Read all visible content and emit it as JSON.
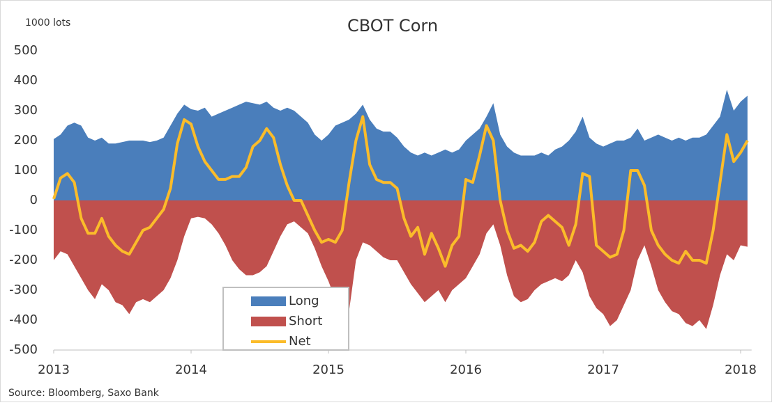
{
  "chart_data": {
    "type": "area",
    "title": "CBOT Corn",
    "y_label": "1000 lots",
    "source": "Source: Bloomberg, Saxo Bank",
    "x": [
      2013.0,
      2013.05,
      2013.1,
      2013.15,
      2013.2,
      2013.25,
      2013.3,
      2013.35,
      2013.4,
      2013.45,
      2013.5,
      2013.55,
      2013.6,
      2013.65,
      2013.7,
      2013.75,
      2013.8,
      2013.85,
      2013.9,
      2013.95,
      2014.0,
      2014.05,
      2014.1,
      2014.15,
      2014.2,
      2014.25,
      2014.3,
      2014.35,
      2014.4,
      2014.45,
      2014.5,
      2014.55,
      2014.6,
      2014.65,
      2014.7,
      2014.75,
      2014.8,
      2014.85,
      2014.9,
      2014.95,
      2015.0,
      2015.05,
      2015.1,
      2015.15,
      2015.2,
      2015.25,
      2015.3,
      2015.35,
      2015.4,
      2015.45,
      2015.5,
      2015.55,
      2015.6,
      2015.65,
      2015.7,
      2015.75,
      2015.8,
      2015.85,
      2015.9,
      2015.95,
      2016.0,
      2016.05,
      2016.1,
      2016.15,
      2016.2,
      2016.25,
      2016.3,
      2016.35,
      2016.4,
      2016.45,
      2016.5,
      2016.55,
      2016.6,
      2016.65,
      2016.7,
      2016.75,
      2016.8,
      2016.85,
      2016.9,
      2016.95,
      2017.0,
      2017.05,
      2017.1,
      2017.15,
      2017.2,
      2017.25,
      2017.3,
      2017.35,
      2017.4,
      2017.45,
      2017.5,
      2017.55,
      2017.6,
      2017.65,
      2017.7,
      2017.75,
      2017.8,
      2017.85,
      2017.9,
      2017.95,
      2018.0,
      2018.05
    ],
    "series": [
      {
        "name": "Long",
        "color": "#4a7ebb",
        "kind": "area",
        "values": [
          205,
          220,
          250,
          260,
          250,
          210,
          200,
          210,
          190,
          190,
          195,
          200,
          200,
          200,
          195,
          200,
          210,
          250,
          290,
          320,
          305,
          300,
          310,
          280,
          290,
          300,
          310,
          320,
          330,
          325,
          320,
          330,
          310,
          300,
          310,
          300,
          280,
          260,
          220,
          200,
          220,
          250,
          260,
          270,
          290,
          320,
          270,
          240,
          230,
          230,
          210,
          180,
          160,
          150,
          160,
          150,
          160,
          170,
          160,
          170,
          200,
          220,
          240,
          280,
          325,
          220,
          180,
          160,
          150,
          150,
          150,
          160,
          150,
          170,
          180,
          200,
          230,
          280,
          210,
          190,
          180,
          190,
          200,
          200,
          210,
          240,
          200,
          210,
          220,
          210,
          200,
          210,
          200,
          210,
          210,
          220,
          250,
          280,
          370,
          300,
          330,
          350
        ]
      },
      {
        "name": "Short",
        "color": "#c0504d",
        "kind": "area",
        "values": [
          -200,
          -170,
          -180,
          -220,
          -260,
          -300,
          -330,
          -280,
          -300,
          -340,
          -350,
          -380,
          -340,
          -330,
          -340,
          -320,
          -300,
          -260,
          -200,
          -120,
          -60,
          -55,
          -60,
          -80,
          -110,
          -150,
          -200,
          -230,
          -250,
          -250,
          -240,
          -220,
          -170,
          -120,
          -80,
          -70,
          -90,
          -110,
          -160,
          -220,
          -270,
          -330,
          -360,
          -370,
          -200,
          -140,
          -150,
          -170,
          -190,
          -200,
          -200,
          -240,
          -280,
          -310,
          -340,
          -320,
          -300,
          -340,
          -300,
          -280,
          -260,
          -220,
          -180,
          -110,
          -80,
          -150,
          -250,
          -320,
          -340,
          -330,
          -300,
          -280,
          -270,
          -260,
          -270,
          -250,
          -200,
          -240,
          -320,
          -360,
          -380,
          -420,
          -400,
          -350,
          -300,
          -200,
          -150,
          -220,
          -300,
          -340,
          -370,
          -380,
          -410,
          -420,
          -400,
          -430,
          -350,
          -250,
          -180,
          -200,
          -150,
          -155
        ]
      },
      {
        "name": "Net",
        "color": "#fbbc2a",
        "kind": "line",
        "values": [
          5,
          75,
          90,
          60,
          -60,
          -110,
          -110,
          -60,
          -120,
          -150,
          -170,
          -180,
          -140,
          -100,
          -90,
          -60,
          -30,
          40,
          190,
          270,
          255,
          180,
          130,
          100,
          70,
          70,
          80,
          80,
          110,
          180,
          200,
          240,
          210,
          120,
          50,
          0,
          0,
          -50,
          -100,
          -140,
          -130,
          -140,
          -100,
          60,
          200,
          280,
          120,
          70,
          60,
          60,
          40,
          -60,
          -120,
          -90,
          -180,
          -110,
          -160,
          -220,
          -150,
          -120,
          70,
          60,
          150,
          250,
          200,
          0,
          -100,
          -160,
          -150,
          -170,
          -140,
          -70,
          -50,
          -70,
          -90,
          -150,
          -80,
          90,
          80,
          -150,
          -170,
          -190,
          -180,
          -100,
          100,
          100,
          50,
          -100,
          -150,
          -180,
          -200,
          -210,
          -170,
          -200,
          -200,
          -210,
          -100,
          60,
          220,
          130,
          160,
          200
        ]
      }
    ],
    "xlim": [
      2013,
      2018.08
    ],
    "xticks": [
      2013,
      2014,
      2015,
      2016,
      2017,
      2018
    ],
    "ylim": [
      -500,
      500
    ],
    "yticks": [
      -500,
      -400,
      -300,
      -200,
      -100,
      0,
      100,
      200,
      300,
      400,
      500
    ],
    "grid": false,
    "legend": "bottom-left"
  }
}
